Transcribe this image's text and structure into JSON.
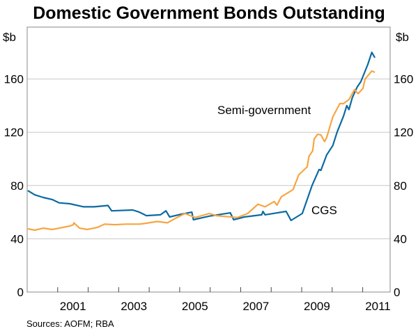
{
  "chart_data": {
    "type": "line",
    "title": "Domestic Government Bonds Outstanding",
    "ylabel_left": "$b",
    "ylabel_right": "$b",
    "xlabel": "",
    "xlim": [
      2000,
      2011.9
    ],
    "ylim": [
      0,
      180
    ],
    "yticks": [
      0,
      40,
      80,
      120,
      160
    ],
    "xtick_labels": [
      "2001",
      "2003",
      "2005",
      "2007",
      "2009",
      "2011"
    ],
    "grid": true,
    "source": "Sources: AOFM; RBA",
    "colors": {
      "cgs": "#0b6aa2",
      "semi": "#f7a541"
    },
    "series": [
      {
        "name": "CGS",
        "key": "cgs",
        "x": [
          2000.02,
          2000.25,
          2000.53,
          2000.82,
          2001.05,
          2001.4,
          2001.85,
          2002.2,
          2002.65,
          2002.77,
          2003.46,
          2003.68,
          2003.91,
          2004.37,
          2004.55,
          2004.67,
          2005.06,
          2005.4,
          2005.45,
          2005.97,
          2006.66,
          2006.77,
          2007.12,
          2007.69,
          2007.73,
          2007.8,
          2008.49,
          2008.6,
          2008.65,
          2009.02,
          2009.34,
          2009.57,
          2009.63,
          2009.82,
          2010.02,
          2010.16,
          2010.37,
          2010.48,
          2010.55,
          2010.66,
          2010.82,
          2010.94,
          2011.17,
          2011.3,
          2011.4
        ],
        "y": [
          76.2,
          73,
          71,
          69.5,
          67,
          66.3,
          64,
          64,
          65,
          61,
          61.6,
          60,
          57.4,
          58,
          61,
          56.4,
          58.5,
          60,
          54.3,
          57,
          59.5,
          54.3,
          56.4,
          58,
          60.6,
          58,
          60.6,
          56,
          53.8,
          59,
          80,
          92,
          91.4,
          103,
          110,
          120,
          132,
          140,
          137,
          146,
          154,
          158,
          171,
          180,
          176
        ]
      },
      {
        "name": "Semi-government",
        "key": "semi",
        "x": [
          2000.02,
          2000.25,
          2000.53,
          2000.82,
          2001.05,
          2001.4,
          2001.51,
          2001.53,
          2001.72,
          2001.97,
          2002.31,
          2002.54,
          2002.88,
          2003.23,
          2003.68,
          2003.91,
          2004.26,
          2004.6,
          2004.83,
          2005.17,
          2005.51,
          2005.97,
          2006.2,
          2006.89,
          2007.23,
          2007.57,
          2007.8,
          2008.1,
          2008.19,
          2008.33,
          2008.56,
          2008.72,
          2008.9,
          2009.18,
          2009.24,
          2009.36,
          2009.41,
          2009.52,
          2009.63,
          2009.75,
          2009.82,
          2010.02,
          2010.25,
          2010.37,
          2010.55,
          2010.73,
          2010.85,
          2011.01,
          2011.08,
          2011.3,
          2011.4
        ],
        "y": [
          47.5,
          46.5,
          48,
          47,
          48,
          49.6,
          50.5,
          52,
          48,
          47,
          48.6,
          51,
          50.6,
          51,
          51,
          51.7,
          53,
          52,
          55,
          59,
          56,
          59,
          57.4,
          56,
          59,
          66,
          64,
          68,
          65.3,
          71.5,
          74.7,
          77,
          88,
          94,
          102,
          106,
          115,
          118.5,
          118,
          113,
          116,
          131.6,
          141.5,
          141.5,
          144.6,
          152,
          149,
          153,
          160,
          166,
          165
        ]
      }
    ],
    "annotations": [
      {
        "text": "Semi-government",
        "series": "semi"
      },
      {
        "text": "CGS",
        "series": "cgs"
      }
    ]
  }
}
